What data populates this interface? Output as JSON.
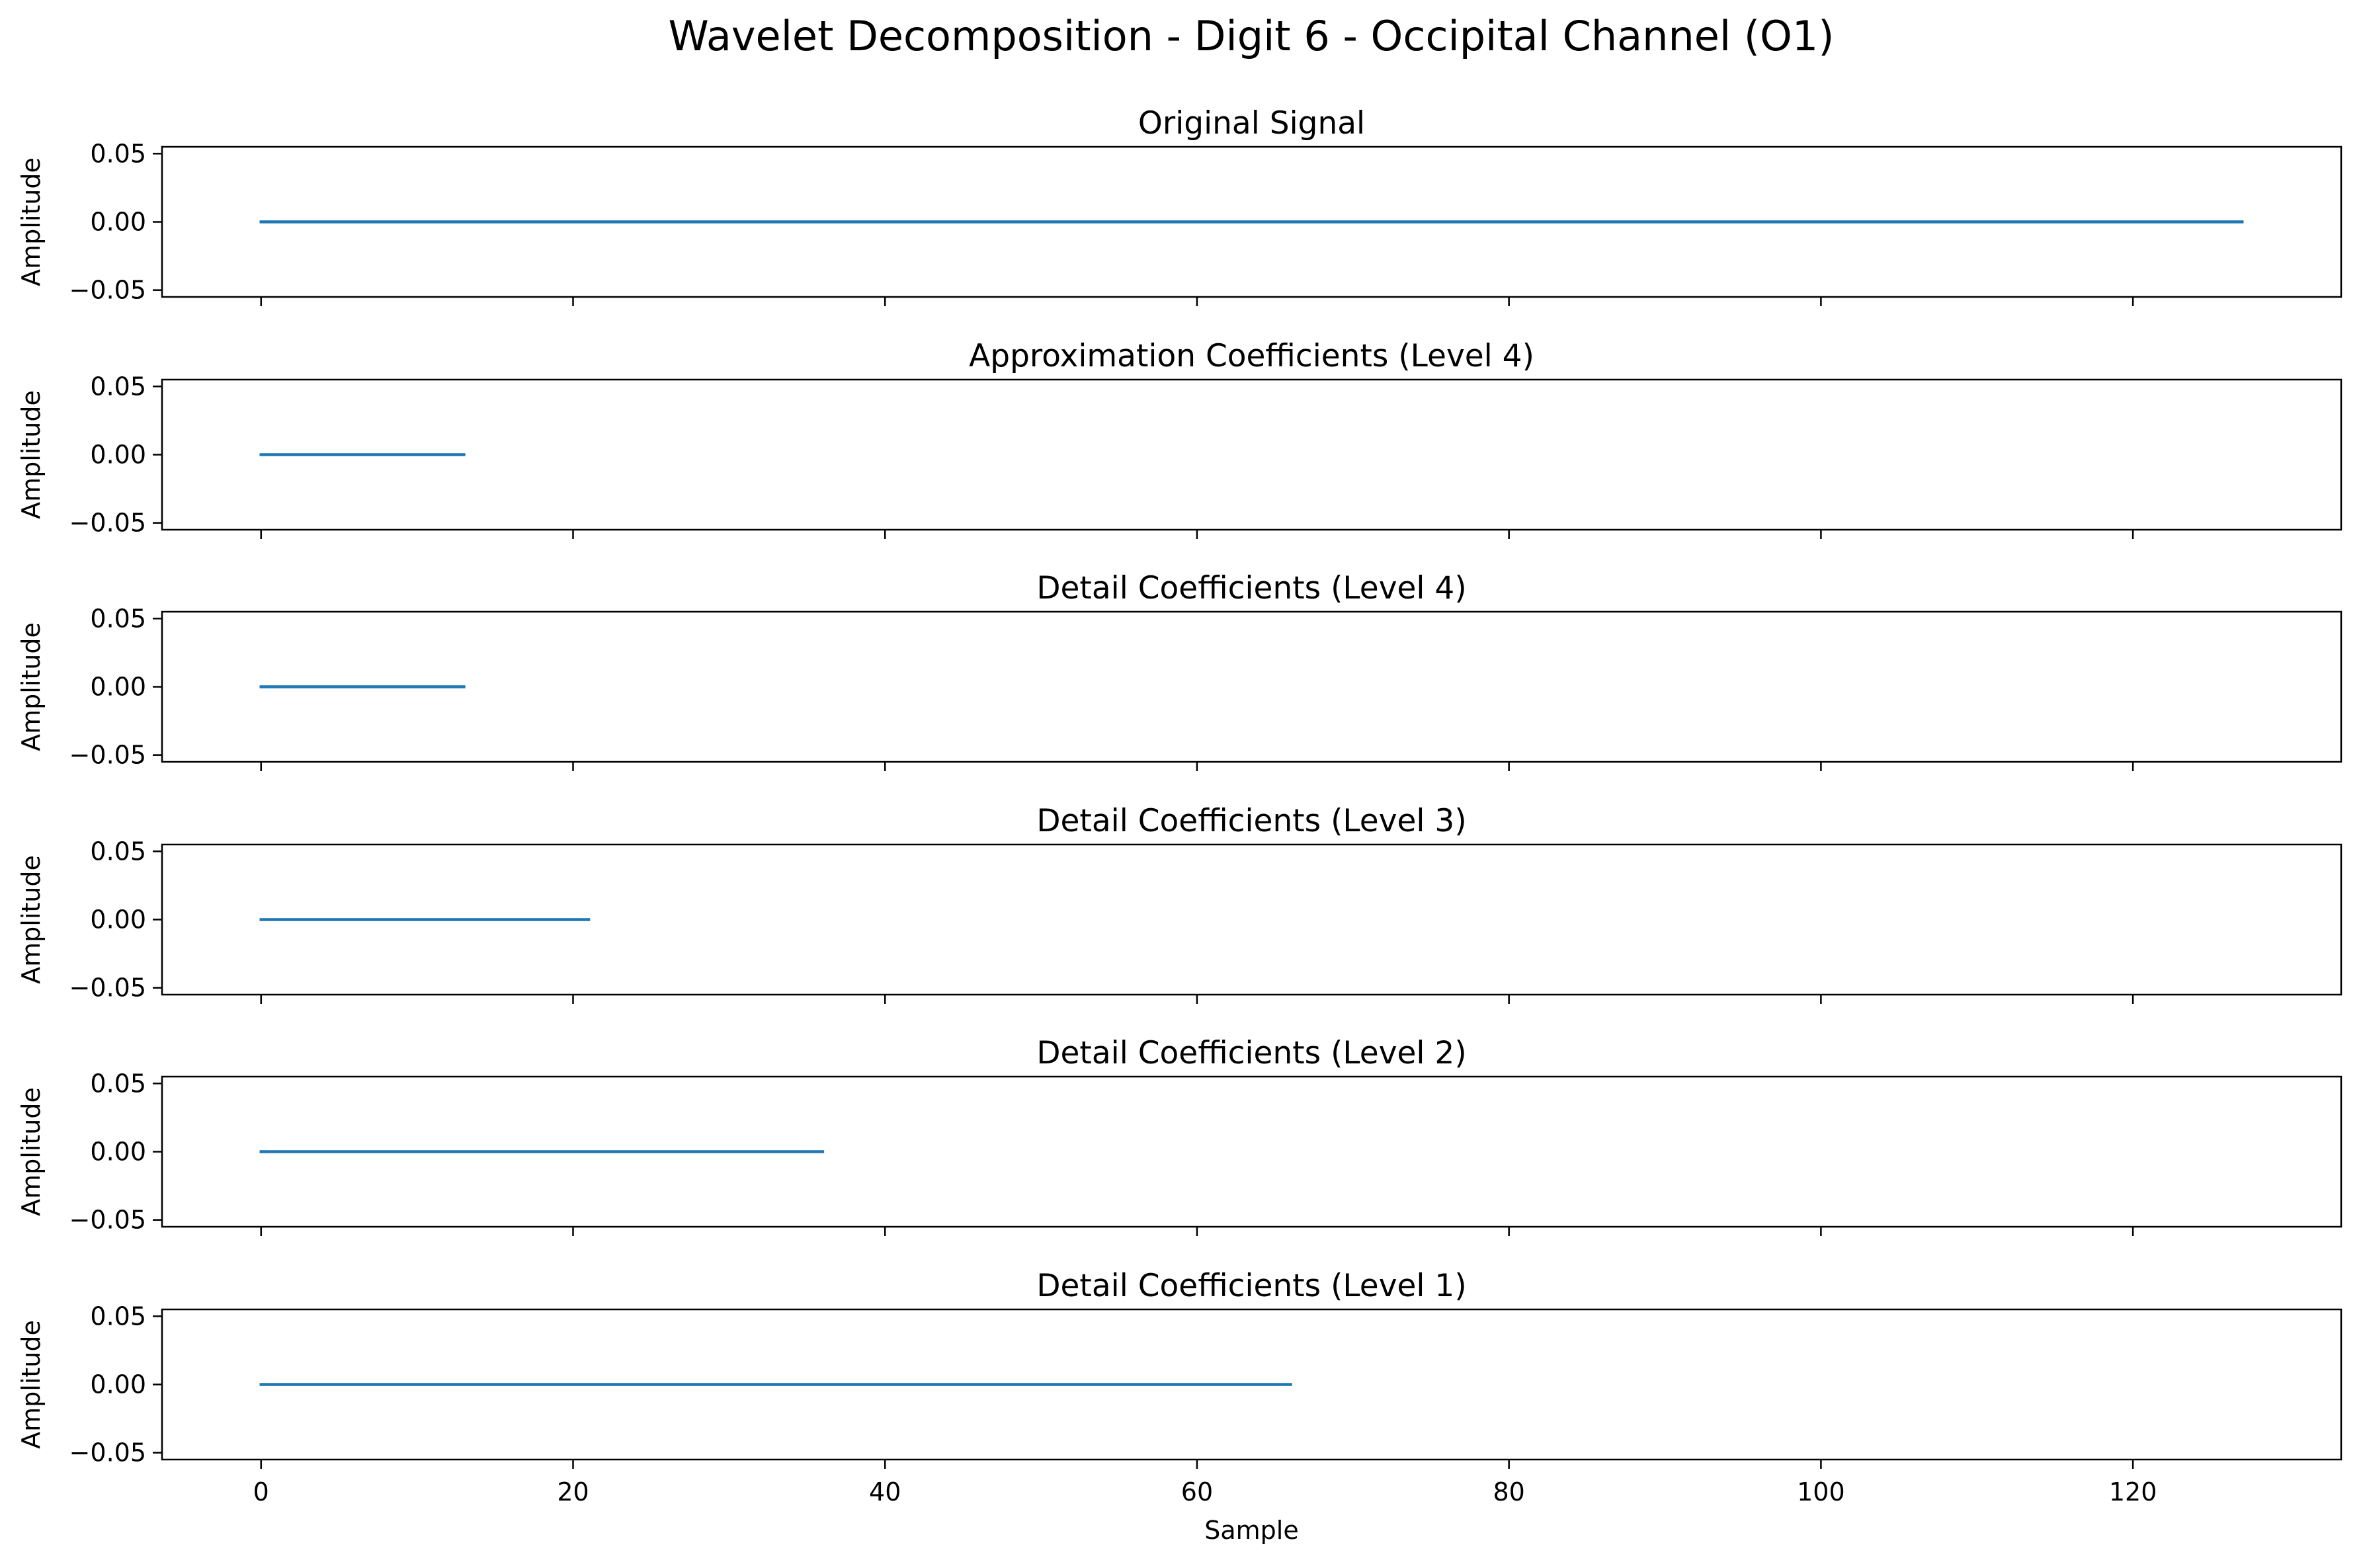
{
  "figure_title": "Wavelet Decomposition - Digit 6 - Occipital Channel (O1)",
  "chart_data": [
    {
      "type": "line",
      "title": "Original Signal",
      "xlabel": "",
      "ylabel": "Amplitude",
      "xlim": [
        -6.35,
        133.35
      ],
      "ylim": [
        -0.055,
        0.055
      ],
      "yticks": [
        0.05,
        0.0,
        -0.05
      ],
      "ytick_labels": [
        "0.05",
        "0.00",
        "−0.05"
      ],
      "xticks": [
        0,
        20,
        40,
        60,
        80,
        100,
        120
      ],
      "xtick_labels": [],
      "grid": false,
      "series": [
        {
          "color": "#1f77b4",
          "x_start": 0,
          "x_end": 127,
          "y": 0.0
        }
      ]
    },
    {
      "type": "line",
      "title": "Approximation Coefficients (Level 4)",
      "xlabel": "",
      "ylabel": "Amplitude",
      "xlim": [
        -6.35,
        133.35
      ],
      "ylim": [
        -0.055,
        0.055
      ],
      "yticks": [
        0.05,
        0.0,
        -0.05
      ],
      "ytick_labels": [
        "0.05",
        "0.00",
        "−0.05"
      ],
      "xticks": [
        0,
        20,
        40,
        60,
        80,
        100,
        120
      ],
      "xtick_labels": [],
      "grid": false,
      "series": [
        {
          "color": "#1f77b4",
          "x_start": 0,
          "x_end": 13,
          "y": 0.0
        }
      ]
    },
    {
      "type": "line",
      "title": "Detail Coefficients (Level 4)",
      "xlabel": "",
      "ylabel": "Amplitude",
      "xlim": [
        -6.35,
        133.35
      ],
      "ylim": [
        -0.055,
        0.055
      ],
      "yticks": [
        0.05,
        0.0,
        -0.05
      ],
      "ytick_labels": [
        "0.05",
        "0.00",
        "−0.05"
      ],
      "xticks": [
        0,
        20,
        40,
        60,
        80,
        100,
        120
      ],
      "xtick_labels": [],
      "grid": false,
      "series": [
        {
          "color": "#1f77b4",
          "x_start": 0,
          "x_end": 13,
          "y": 0.0
        }
      ]
    },
    {
      "type": "line",
      "title": "Detail Coefficients (Level 3)",
      "xlabel": "",
      "ylabel": "Amplitude",
      "xlim": [
        -6.35,
        133.35
      ],
      "ylim": [
        -0.055,
        0.055
      ],
      "yticks": [
        0.05,
        0.0,
        -0.05
      ],
      "ytick_labels": [
        "0.05",
        "0.00",
        "−0.05"
      ],
      "xticks": [
        0,
        20,
        40,
        60,
        80,
        100,
        120
      ],
      "xtick_labels": [],
      "grid": false,
      "series": [
        {
          "color": "#1f77b4",
          "x_start": 0,
          "x_end": 21,
          "y": 0.0
        }
      ]
    },
    {
      "type": "line",
      "title": "Detail Coefficients (Level 2)",
      "xlabel": "",
      "ylabel": "Amplitude",
      "xlim": [
        -6.35,
        133.35
      ],
      "ylim": [
        -0.055,
        0.055
      ],
      "yticks": [
        0.05,
        0.0,
        -0.05
      ],
      "ytick_labels": [
        "0.05",
        "0.00",
        "−0.05"
      ],
      "xticks": [
        0,
        20,
        40,
        60,
        80,
        100,
        120
      ],
      "xtick_labels": [],
      "grid": false,
      "series": [
        {
          "color": "#1f77b4",
          "x_start": 0,
          "x_end": 36,
          "y": 0.0
        }
      ]
    },
    {
      "type": "line",
      "title": "Detail Coefficients (Level 1)",
      "xlabel": "Sample",
      "ylabel": "Amplitude",
      "xlim": [
        -6.35,
        133.35
      ],
      "ylim": [
        -0.055,
        0.055
      ],
      "yticks": [
        0.05,
        0.0,
        -0.05
      ],
      "ytick_labels": [
        "0.05",
        "0.00",
        "−0.05"
      ],
      "xticks": [
        0,
        20,
        40,
        60,
        80,
        100,
        120
      ],
      "xtick_labels": [
        "0",
        "20",
        "40",
        "60",
        "80",
        "100",
        "120"
      ],
      "grid": false,
      "series": [
        {
          "color": "#1f77b4",
          "x_start": 0,
          "x_end": 66,
          "y": 0.0
        }
      ]
    }
  ]
}
